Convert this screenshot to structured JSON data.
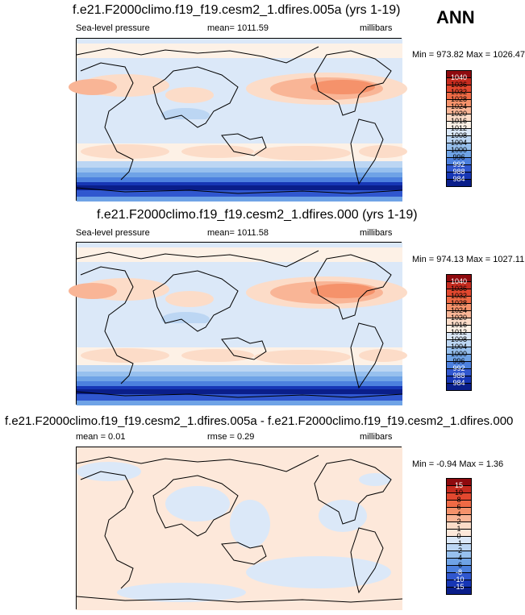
{
  "season": "ANN",
  "panels": [
    {
      "title": "f.e21.F2000climo.f19_f19.cesm2_1.dfires.005a (yrs 1-19)",
      "left_label": "Sea-level pressure",
      "center_label": "mean= 1011.59",
      "right_label": "millibars",
      "minmax": "Min = 973.82 Max = 1026.47",
      "colorbar": {
        "levels": [
          "1040",
          "1036",
          "1032",
          "1028",
          "1024",
          "1020",
          "1016",
          "1012",
          "1008",
          "1004",
          "1000",
          "996",
          "992",
          "988",
          "984"
        ],
        "colors": [
          "#8e0a0e",
          "#c62b1f",
          "#e2482f",
          "#ef6a45",
          "#f5926b",
          "#f9b596",
          "#fcdcc8",
          "#fdf1e6",
          "#dbe8f8",
          "#bcd6f3",
          "#97c0ee",
          "#6fa3e6",
          "#4c80de",
          "#3057cf",
          "#1636b5",
          "#0a1e8a"
        ]
      }
    },
    {
      "title": "f.e21.F2000climo.f19_f19.cesm2_1.dfires.000 (yrs 1-19)",
      "left_label": "Sea-level pressure",
      "center_label": "mean= 1011.58",
      "right_label": "millibars",
      "minmax": "Min = 974.13 Max = 1027.11",
      "colorbar": {
        "levels": [
          "1040",
          "1036",
          "1032",
          "1028",
          "1024",
          "1020",
          "1016",
          "1012",
          "1008",
          "1004",
          "1000",
          "996",
          "992",
          "988",
          "984"
        ],
        "colors": [
          "#8e0a0e",
          "#c62b1f",
          "#e2482f",
          "#ef6a45",
          "#f5926b",
          "#f9b596",
          "#fcdcc8",
          "#fdf1e6",
          "#dbe8f8",
          "#bcd6f3",
          "#97c0ee",
          "#6fa3e6",
          "#4c80de",
          "#3057cf",
          "#1636b5",
          "#0a1e8a"
        ]
      }
    },
    {
      "title": "f.e21.F2000climo.f19_f19.cesm2_1.dfires.005a - f.e21.F2000climo.f19_f19.cesm2_1.dfires.000",
      "left_label": "mean =   0.01",
      "center_label": "rmse =   0.29",
      "right_label": "millibars",
      "minmax": "Min =  -0.94 Max =   1.36",
      "colorbar": {
        "levels": [
          "15",
          "10",
          "8",
          "6",
          "4",
          "2",
          "1",
          "0",
          "-1",
          "-2",
          "-4",
          "-6",
          "-8",
          "-10",
          "-15"
        ],
        "colors": [
          "#8e0a0e",
          "#c62b1f",
          "#e2482f",
          "#ef6a45",
          "#f5926b",
          "#f9b596",
          "#fcdcc8",
          "#fde8da",
          "#dbe8f8",
          "#bcd6f3",
          "#97c0ee",
          "#6fa3e6",
          "#4c80de",
          "#3057cf",
          "#1636b5",
          "#0a1e8a"
        ]
      }
    }
  ]
}
